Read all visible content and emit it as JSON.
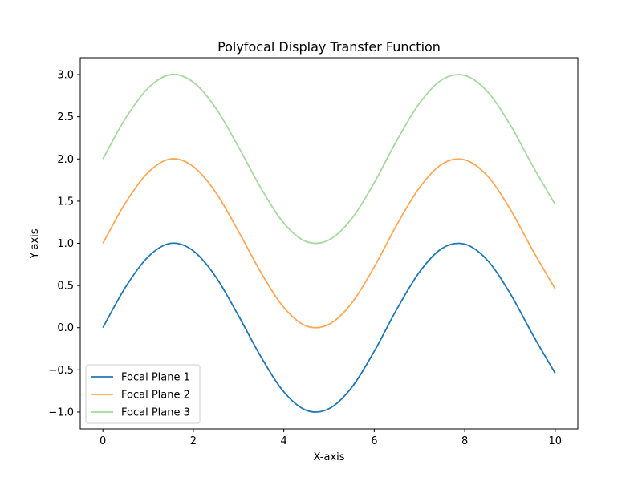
{
  "chart_data": {
    "type": "line",
    "title": "Polyfocal Display Transfer Function",
    "xlabel": "X-axis",
    "ylabel": "Y-axis",
    "xlim": [
      -0.5,
      10.5
    ],
    "ylim": [
      -1.2,
      3.2
    ],
    "xticks": [
      0,
      2,
      4,
      6,
      8,
      10
    ],
    "xtick_labels": [
      "0",
      "2",
      "4",
      "6",
      "8",
      "10"
    ],
    "yticks": [
      -1.0,
      -0.5,
      0.0,
      0.5,
      1.0,
      1.5,
      2.0,
      2.5,
      3.0
    ],
    "ytick_labels": [
      "−1.0",
      "−0.5",
      "0.0",
      "0.5",
      "1.0",
      "1.5",
      "2.0",
      "2.5",
      "3.0"
    ],
    "grid": false,
    "legend_position": "lower-left",
    "x": [
      0,
      0.5,
      1,
      1.5,
      2,
      2.5,
      3,
      3.5,
      4,
      4.5,
      5,
      5.5,
      6,
      6.5,
      7,
      7.5,
      8,
      8.5,
      9,
      9.5,
      10
    ],
    "series": [
      {
        "name": "Focal Plane 1",
        "color": "#1f77b4",
        "values": [
          0.0,
          0.48,
          0.84,
          1.0,
          0.91,
          0.6,
          0.14,
          -0.35,
          -0.76,
          -0.98,
          -0.96,
          -0.71,
          -0.28,
          0.22,
          0.66,
          0.94,
          0.99,
          0.8,
          0.41,
          -0.08,
          -0.54
        ]
      },
      {
        "name": "Focal Plane 2",
        "color": "#ffa756",
        "values": [
          1.0,
          1.48,
          1.84,
          2.0,
          1.91,
          1.6,
          1.14,
          0.65,
          0.24,
          0.02,
          0.04,
          0.29,
          0.72,
          1.22,
          1.66,
          1.94,
          1.99,
          1.8,
          1.41,
          0.92,
          0.46
        ]
      },
      {
        "name": "Focal Plane 3",
        "color": "#a5d99f",
        "values": [
          2.0,
          2.48,
          2.84,
          3.0,
          2.91,
          2.6,
          2.14,
          1.65,
          1.24,
          1.02,
          1.04,
          1.29,
          1.72,
          2.22,
          2.66,
          2.94,
          2.99,
          2.8,
          2.41,
          1.92,
          1.46
        ]
      }
    ]
  }
}
